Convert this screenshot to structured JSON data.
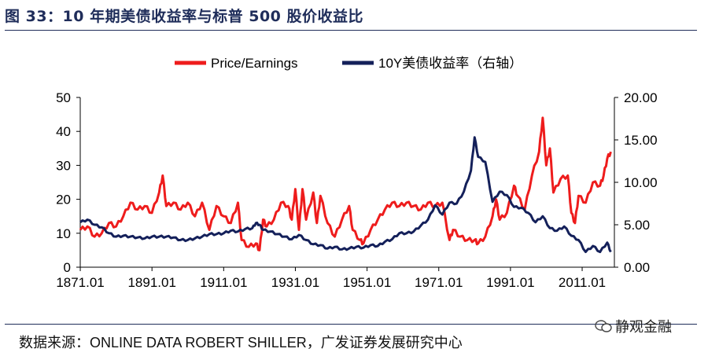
{
  "page": {
    "title": "图 33：10 年期美债收益率与标普 500 股价收益比",
    "source": "数据来源：ONLINE DATA ROBERT SHILLER，广发证券发展研究中心",
    "watermark": "静观金融"
  },
  "colors": {
    "pe": "#ee1c1c",
    "yield": "#14205a",
    "rule": "#1f2d5a"
  },
  "chart_data": {
    "type": "line",
    "title": "10 年期美债收益率与标普 500 股价收益比",
    "legend_position": "top-center",
    "x_range": [
      1871.0,
      2020.0
    ],
    "x_ticks": [
      1871.01,
      1891.01,
      1911.01,
      1931.01,
      1951.01,
      1971.01,
      1991.01,
      2011.01
    ],
    "x_tick_labels": [
      "1871.01",
      "1891.01",
      "1911.01",
      "1931.01",
      "1951.01",
      "1971.01",
      "1991.01",
      "2011.01"
    ],
    "y_left": {
      "range": [
        0,
        50
      ],
      "ticks": [
        0,
        10,
        20,
        30,
        40,
        50
      ],
      "tick_labels": [
        "0",
        "10",
        "20",
        "30",
        "40",
        "50"
      ]
    },
    "y_right": {
      "range": [
        0,
        20
      ],
      "ticks": [
        0,
        5,
        10,
        15,
        20
      ],
      "tick_labels": [
        "0.00",
        "5.00",
        "10.00",
        "15.00",
        "20.00"
      ]
    },
    "series": [
      {
        "name": "Price/Earnings",
        "axis": "left",
        "x": [
          1871,
          1873,
          1875,
          1877,
          1879,
          1881,
          1883,
          1885,
          1887,
          1889,
          1891,
          1893,
          1894,
          1895,
          1897,
          1899,
          1901,
          1903,
          1905,
          1907,
          1909,
          1911,
          1913,
          1915,
          1916,
          1918,
          1920,
          1921,
          1922,
          1923,
          1925,
          1927,
          1929,
          1930,
          1931,
          1932,
          1933,
          1934,
          1936,
          1937,
          1938,
          1940,
          1942,
          1944,
          1946,
          1947,
          1949,
          1950,
          1952,
          1954,
          1956,
          1958,
          1960,
          1962,
          1964,
          1966,
          1968,
          1970,
          1972,
          1974,
          1975,
          1977,
          1979,
          1981,
          1982,
          1984,
          1986,
          1987,
          1988,
          1990,
          1992,
          1993,
          1995,
          1997,
          1999,
          2000,
          2001,
          2002,
          2003,
          2005,
          2007,
          2008,
          2009,
          2010,
          2012,
          2014,
          2016,
          2017,
          2018,
          2019
        ],
        "y": [
          11,
          12,
          9,
          10,
          13,
          12,
          15,
          19,
          17,
          18,
          16,
          22,
          27,
          18,
          19,
          17,
          19,
          15,
          19,
          11,
          18,
          15,
          13,
          19,
          8,
          6,
          7,
          5,
          14,
          12,
          14,
          19,
          18,
          14,
          23,
          11,
          23,
          14,
          22,
          13,
          21,
          13,
          9,
          14,
          18,
          11,
          8,
          7,
          11,
          14,
          17,
          19,
          18,
          19,
          18,
          17,
          19,
          18,
          19,
          8,
          11,
          9,
          8,
          8,
          7,
          9,
          15,
          20,
          14,
          16,
          24,
          21,
          17,
          27,
          34,
          44,
          30,
          35,
          22,
          26,
          27,
          16,
          13,
          21,
          19,
          25,
          24,
          27,
          32,
          34
        ]
      },
      {
        "name": "10Y美债收益率（右轴）",
        "axis": "right",
        "x": [
          1871,
          1873,
          1875,
          1877,
          1879,
          1881,
          1883,
          1885,
          1887,
          1889,
          1891,
          1893,
          1895,
          1897,
          1899,
          1901,
          1903,
          1905,
          1907,
          1909,
          1911,
          1913,
          1915,
          1917,
          1919,
          1920,
          1921,
          1922,
          1924,
          1926,
          1928,
          1930,
          1932,
          1934,
          1936,
          1938,
          1940,
          1942,
          1944,
          1946,
          1948,
          1950,
          1952,
          1954,
          1956,
          1958,
          1960,
          1962,
          1964,
          1966,
          1968,
          1970,
          1972,
          1974,
          1976,
          1978,
          1980,
          1981,
          1982,
          1984,
          1986,
          1988,
          1990,
          1992,
          1994,
          1996,
          1998,
          2000,
          2002,
          2004,
          2006,
          2008,
          2010,
          2012,
          2014,
          2016,
          2018,
          2019
        ],
        "y": [
          5.3,
          5.6,
          5.0,
          4.7,
          4.0,
          3.6,
          3.7,
          3.6,
          3.5,
          3.4,
          3.6,
          3.6,
          3.6,
          3.5,
          3.2,
          3.2,
          3.4,
          3.6,
          3.9,
          3.9,
          4.0,
          4.3,
          4.2,
          4.5,
          4.6,
          5.2,
          5.0,
          4.4,
          4.2,
          3.9,
          3.6,
          3.3,
          3.8,
          3.2,
          2.7,
          2.6,
          2.2,
          2.4,
          2.1,
          2.2,
          2.4,
          2.3,
          2.6,
          2.5,
          3.0,
          3.3,
          4.0,
          4.0,
          4.2,
          4.9,
          5.6,
          7.3,
          6.2,
          7.6,
          7.5,
          8.9,
          11.4,
          15.3,
          13.0,
          12.4,
          7.7,
          8.9,
          8.5,
          7.1,
          7.0,
          6.4,
          5.3,
          6.0,
          4.6,
          4.3,
          4.8,
          3.7,
          3.2,
          1.8,
          2.5,
          1.8,
          2.9,
          1.8
        ]
      }
    ]
  }
}
